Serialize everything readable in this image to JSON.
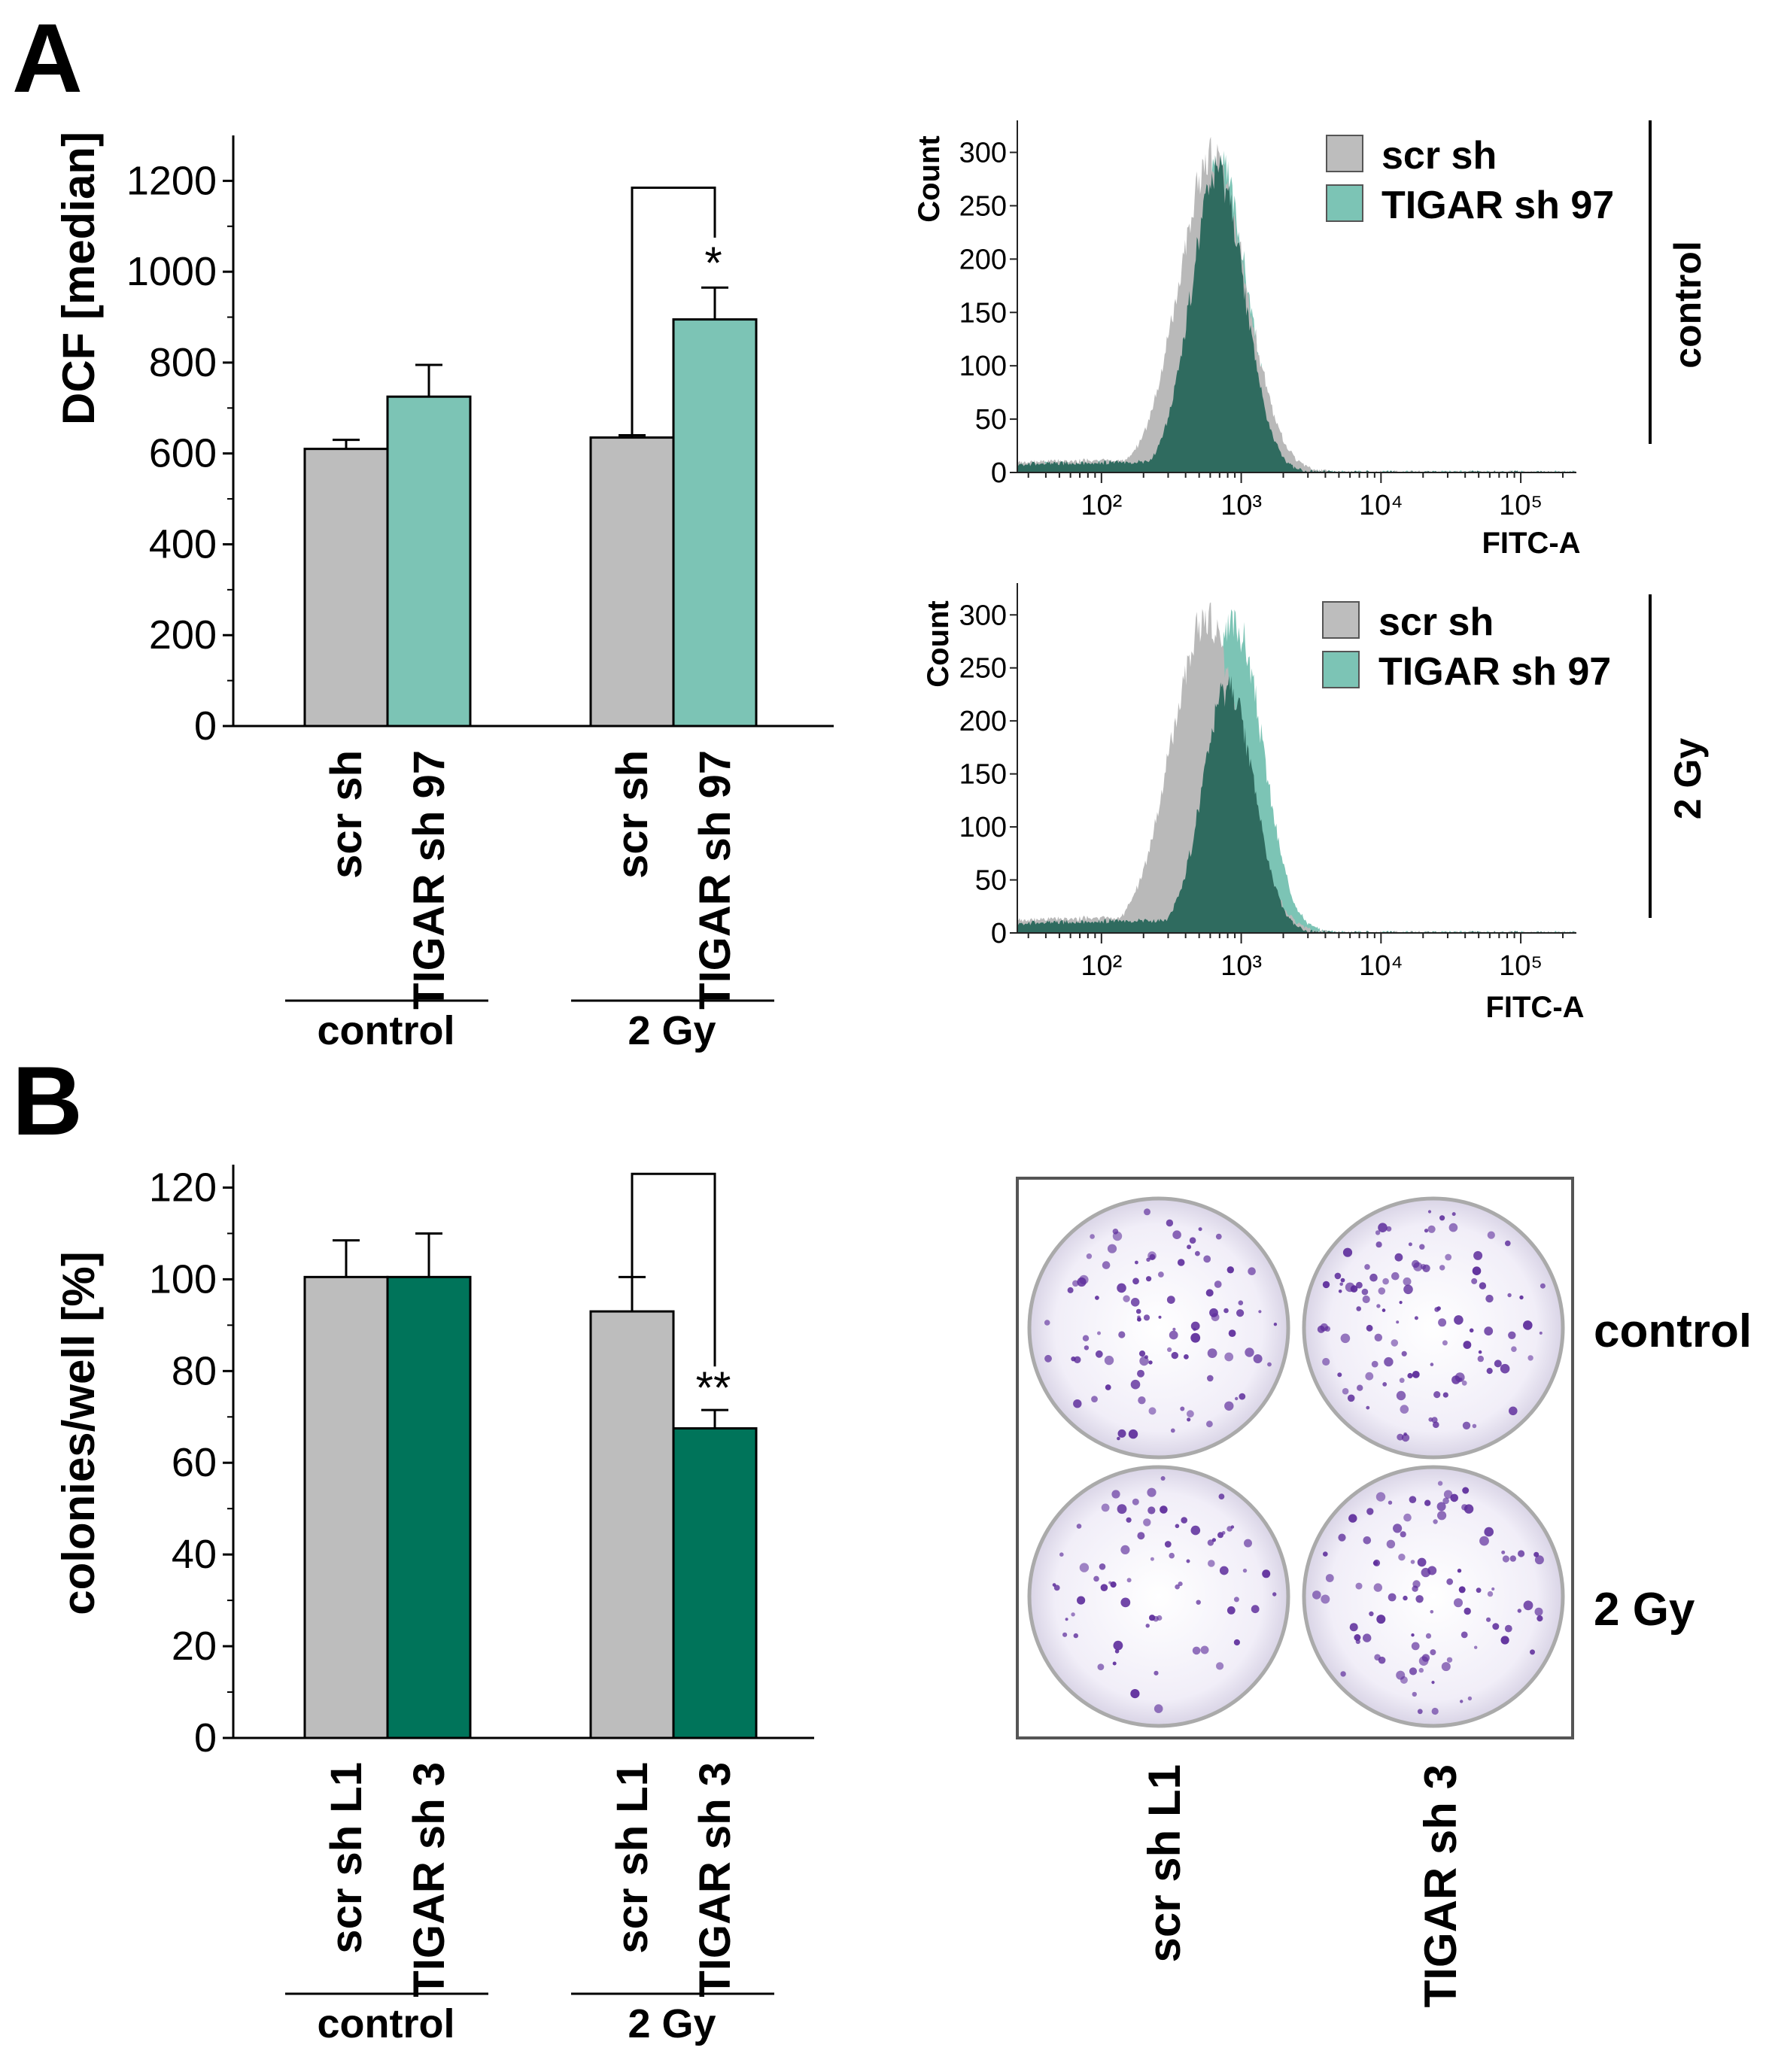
{
  "panels": {
    "A": "A",
    "B": "B"
  },
  "colors": {
    "scr": "#bdbdbd",
    "tigar_light": "#7cc4b5",
    "tigar_dark": "#00745a",
    "hist_dark": "#2f6b5f",
    "plate_dot": "#5b2a9a"
  },
  "chart_data": [
    {
      "id": "dcf_bar",
      "type": "bar",
      "title": "",
      "ylabel": "DCF [median]",
      "xlabel": "",
      "ylim": [
        0,
        1300
      ],
      "yticks": [
        0,
        200,
        400,
        600,
        800,
        1000,
        1200
      ],
      "groups": [
        {
          "label": "control",
          "bars": [
            {
              "label": "scr sh",
              "value": 610,
              "error": 20,
              "color": "#bdbdbd"
            },
            {
              "label": "TIGAR sh 97",
              "value": 725,
              "error": 70,
              "color": "#7cc4b5"
            }
          ]
        },
        {
          "label": "2 Gy",
          "bars": [
            {
              "label": "scr sh",
              "value": 635,
              "error": 5,
              "color": "#bdbdbd"
            },
            {
              "label": "TIGAR sh 97",
              "value": 895,
              "error": 70,
              "color": "#7cc4b5"
            }
          ]
        }
      ],
      "significance": {
        "group": "2 Gy",
        "label": "*",
        "bracket_top": 1185
      }
    },
    {
      "id": "hist_control",
      "type": "area",
      "ylabel": "Count",
      "xlabel": "FITC-A",
      "xscale": "log",
      "xlim": [
        25,
        250000
      ],
      "ylim": [
        0,
        330
      ],
      "yticks": [
        0,
        50,
        100,
        150,
        200,
        250,
        300
      ],
      "xticks": [
        "10²",
        "10³",
        "10⁴",
        "10⁵"
      ],
      "legend": [
        {
          "label": "scr sh",
          "color": "#bdbdbd"
        },
        {
          "label": "TIGAR sh 97",
          "color": "#7cc4b5"
        }
      ],
      "side_label": "control",
      "series": [
        {
          "name": "scr sh",
          "peak_x": 620,
          "peak_count": 295,
          "width": 0.24,
          "floor": 12
        },
        {
          "name": "TIGAR sh 97",
          "peak_x": 680,
          "peak_count": 290,
          "width": 0.21,
          "floor": 10
        }
      ]
    },
    {
      "id": "hist_2gy",
      "type": "area",
      "ylabel": "Count",
      "xlabel": "FITC-A",
      "xscale": "log",
      "xlim": [
        25,
        250000
      ],
      "ylim": [
        0,
        330
      ],
      "yticks": [
        0,
        50,
        100,
        150,
        200,
        250,
        300
      ],
      "xticks": [
        "10²",
        "10³",
        "10⁴",
        "10⁵"
      ],
      "legend": [
        {
          "label": "scr sh",
          "color": "#bdbdbd"
        },
        {
          "label": "TIGAR sh 97",
          "color": "#7cc4b5"
        }
      ],
      "side_label": "2 Gy",
      "series": [
        {
          "name": "scr sh",
          "peak_x": 560,
          "peak_count": 295,
          "width": 0.25,
          "floor": 15
        },
        {
          "name": "TIGAR sh 97",
          "peak_x": 900,
          "peak_count": 290,
          "width": 0.2,
          "floor": 12
        }
      ]
    },
    {
      "id": "colony_bar",
      "type": "bar",
      "title": "",
      "ylabel": "colonies/well [%]",
      "xlabel": "",
      "ylim": [
        0,
        125
      ],
      "yticks": [
        0,
        20,
        40,
        60,
        80,
        100,
        120
      ],
      "groups": [
        {
          "label": "control",
          "bars": [
            {
              "label": "scr sh L1",
              "value": 100.5,
              "error": 8,
              "color": "#bdbdbd"
            },
            {
              "label": "TIGAR sh 3",
              "value": 100.5,
              "error": 9.5,
              "color": "#00745a"
            }
          ]
        },
        {
          "label": "2 Gy",
          "bars": [
            {
              "label": "scr sh L1",
              "value": 93,
              "error": 7.5,
              "color": "#bdbdbd"
            },
            {
              "label": "TIGAR sh 3",
              "value": 67.5,
              "error": 4,
              "color": "#00745a"
            }
          ]
        }
      ],
      "significance": {
        "group": "2 Gy",
        "label": "**",
        "bracket_top": 123
      }
    }
  ],
  "plates": {
    "rows": [
      "control",
      "2 Gy"
    ],
    "columns": [
      "scr sh L1",
      "TIGAR sh 3"
    ]
  }
}
